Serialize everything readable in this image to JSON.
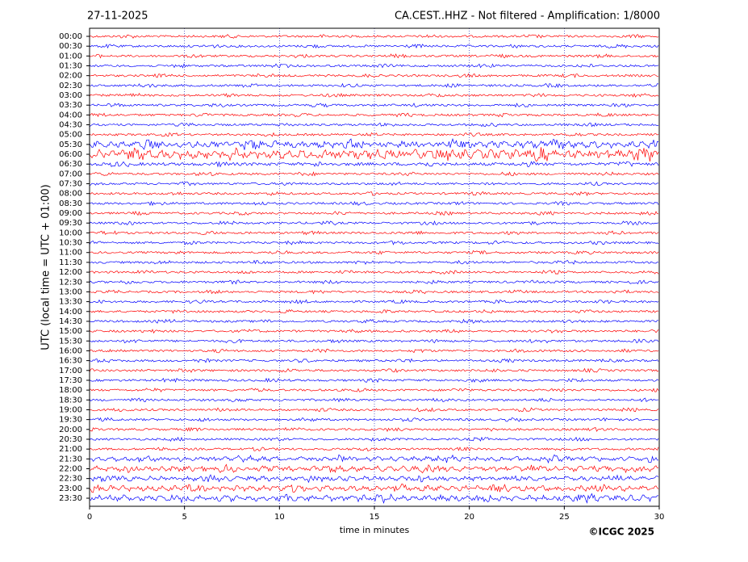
{
  "chart_data": {
    "type": "helicorder",
    "date": "27-11-2025",
    "title": "CA.CEST..HHZ - Not filtered - Amplification: 1/8000",
    "xlabel": "time in minutes",
    "ylabel": "UTC (local time = UTC + 01:00)",
    "copyright": "©ICGC 2025",
    "categories": [
      "00:00",
      "00:30",
      "01:00",
      "01:30",
      "02:00",
      "02:30",
      "03:00",
      "03:30",
      "04:00",
      "04:30",
      "05:00",
      "05:30",
      "06:00",
      "06:30",
      "07:00",
      "07:30",
      "08:00",
      "08:30",
      "09:00",
      "09:30",
      "10:00",
      "10:30",
      "11:00",
      "11:30",
      "12:00",
      "12:30",
      "13:00",
      "13:30",
      "14:00",
      "14:30",
      "15:00",
      "15:30",
      "16:00",
      "16:30",
      "17:00",
      "17:30",
      "18:00",
      "18:30",
      "19:00",
      "19:30",
      "20:00",
      "20:30",
      "21:00",
      "21:30",
      "22:00",
      "22:30",
      "23:00",
      "23:30"
    ],
    "colors": [
      "#ff0000",
      "#0000ff"
    ],
    "xlim": [
      0,
      30
    ],
    "xticks": [
      0,
      5,
      10,
      15,
      20,
      25,
      30
    ],
    "grid": true
  }
}
